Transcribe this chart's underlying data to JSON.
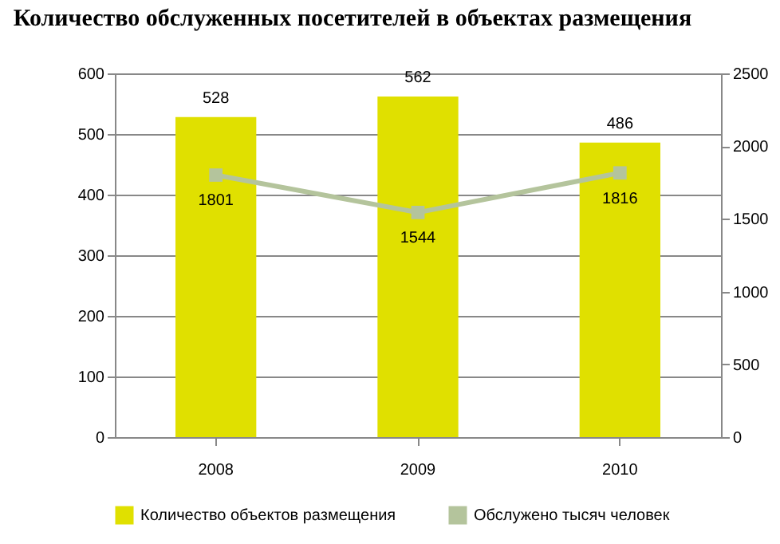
{
  "chart_data": {
    "type": "bar",
    "title": "Количество обслуженных посетителей в объектах размещения",
    "categories": [
      "2008",
      "2009",
      "2010"
    ],
    "series": [
      {
        "name": "Количество объектов размещения",
        "color": "#e0e000",
        "values": [
          528,
          562,
          486
        ]
      },
      {
        "name": "Обслужено тысяч человек",
        "type": "line",
        "axis": "y2",
        "color": "#b4c49c",
        "values": [
          1801,
          1544,
          1816
        ]
      }
    ],
    "ylim": [
      0,
      600
    ],
    "yticks": [
      0,
      100,
      200,
      300,
      400,
      500,
      600
    ],
    "y2lim": [
      0,
      2500
    ],
    "y2ticks": [
      0,
      500,
      1000,
      1500,
      2000,
      2500
    ],
    "grid": "y",
    "legend": "bottom",
    "marker": "square",
    "data_labels": true
  }
}
